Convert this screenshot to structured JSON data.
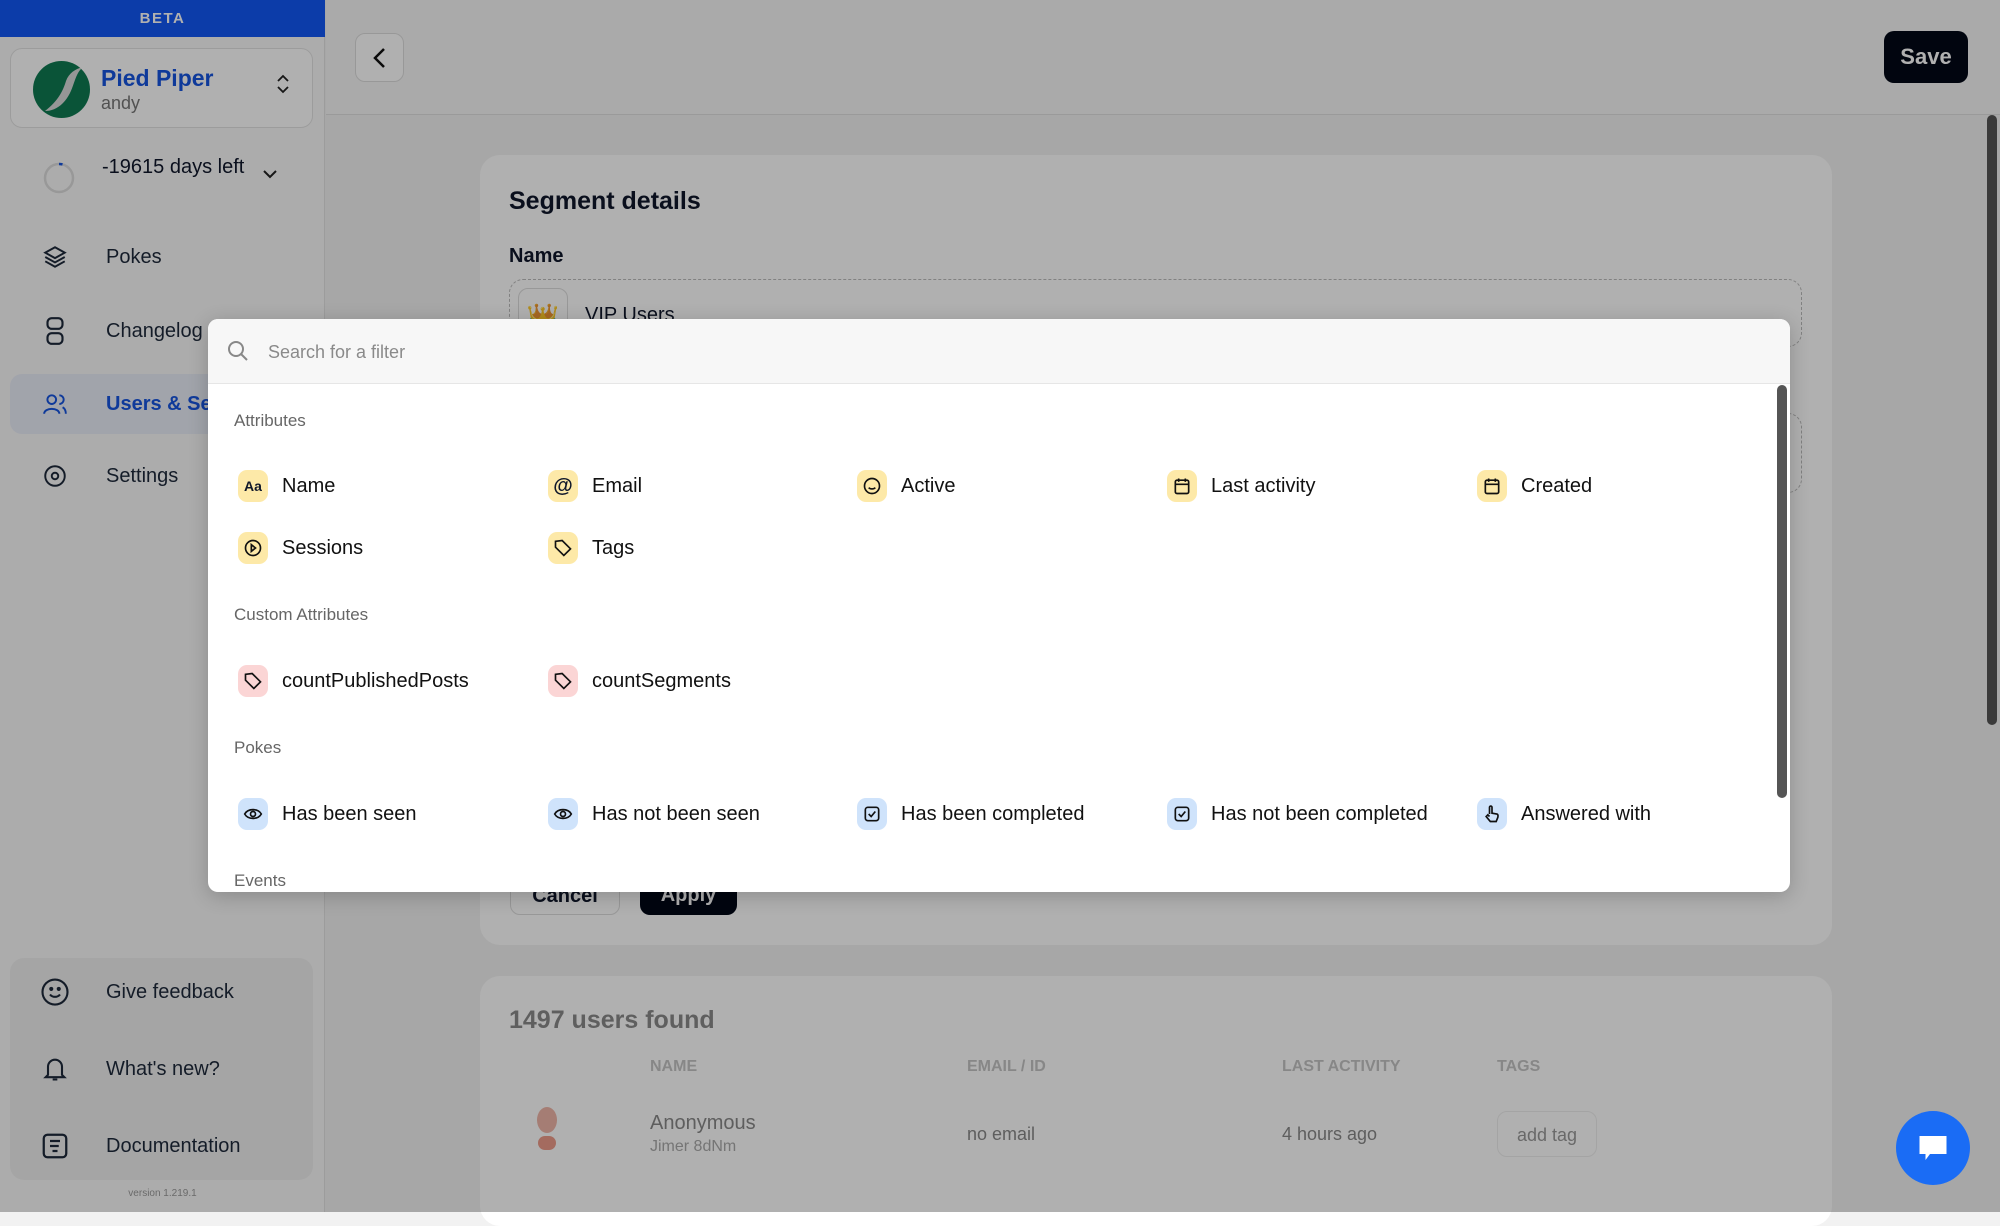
{
  "sidebar": {
    "beta": "BETA",
    "org": {
      "name": "Pied Piper",
      "user": "andy"
    },
    "trial": {
      "text": "-19615 days left",
      "progress": 0.02
    },
    "items": [
      {
        "label": "Pokes",
        "icon": "layers-icon"
      },
      {
        "label": "Changelog",
        "icon": "changelog-icon"
      },
      {
        "label": "Users & Segments",
        "icon": "users-icon",
        "active": true
      },
      {
        "label": "Settings",
        "icon": "gear-icon"
      }
    ],
    "bottom": [
      {
        "label": "Give feedback",
        "icon": "smiley-icon"
      },
      {
        "label": "What's new?",
        "icon": "bell-icon"
      },
      {
        "label": "Documentation",
        "icon": "document-icon"
      }
    ],
    "version": "version 1.219.1"
  },
  "header": {
    "save_label": "Save"
  },
  "segment": {
    "title": "Segment details",
    "name_label": "Name",
    "name_emoji": "👑",
    "name_value": "VIP Users",
    "cancel_label": "Cancel",
    "apply_label": "Apply"
  },
  "users": {
    "title": "1497 users found",
    "columns": [
      "NAME",
      "EMAIL / ID",
      "LAST ACTIVITY",
      "TAGS"
    ],
    "rows": [
      {
        "name": "Anonymous",
        "id": "Jimer 8dNm",
        "email": "no email",
        "last_activity": "4 hours ago",
        "tag_action": "add tag"
      }
    ]
  },
  "filter_modal": {
    "search_placeholder": "Search for a filter",
    "sections": [
      {
        "title": "Attributes",
        "items": [
          {
            "label": "Name",
            "icon": "text-aa-icon",
            "glyph": "Aa"
          },
          {
            "label": "Email",
            "icon": "at-icon",
            "glyph": "@"
          },
          {
            "label": "Active",
            "icon": "smiley-icon"
          },
          {
            "label": "Last activity",
            "icon": "calendar-icon"
          },
          {
            "label": "Created",
            "icon": "calendar-icon"
          },
          {
            "label": "Sessions",
            "icon": "play-circle-icon"
          },
          {
            "label": "Tags",
            "icon": "tag-icon"
          }
        ]
      },
      {
        "title": "Custom Attributes",
        "items": [
          {
            "label": "countPublishedPosts",
            "icon": "tag-icon"
          },
          {
            "label": "countSegments",
            "icon": "tag-icon"
          }
        ]
      },
      {
        "title": "Pokes",
        "items": [
          {
            "label": "Has been seen",
            "icon": "eye-icon"
          },
          {
            "label": "Has not been seen",
            "icon": "eye-icon"
          },
          {
            "label": "Has been completed",
            "icon": "checkbox-icon"
          },
          {
            "label": "Has not been completed",
            "icon": "checkbox-icon"
          },
          {
            "label": "Answered with",
            "icon": "pointer-hand-icon"
          }
        ]
      },
      {
        "title": "Events",
        "items": []
      }
    ]
  },
  "colors": {
    "brand": "#1654e0",
    "beta_bar": "#1257f5",
    "attribute_icon_bg": "#fde9a8",
    "custom_icon_bg": "#fbd5d5",
    "poke_icon_bg": "#cfe3fb",
    "primary_button": "#020817",
    "chat": "#1a6cf5"
  }
}
